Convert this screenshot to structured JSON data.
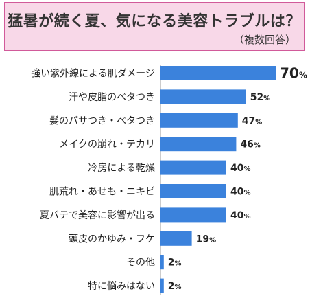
{
  "title": "猛暑が続く夏、気になる美容トラブルは？",
  "subtitle": "（複数回答）",
  "colors": {
    "bar": "#3b82dc",
    "title_bg": "#f8d8e8",
    "title_border": "#d15a9a"
  },
  "chart_data": {
    "type": "bar",
    "orientation": "horizontal",
    "title": "猛暑が続く夏、気になる美容トラブルは？",
    "subtitle": "（複数回答）",
    "unit": "%",
    "categories": [
      "強い紫外線による肌ダメージ",
      "汗や皮脂のベタつき",
      "髪のパサつき・ベタつき",
      "メイクの崩れ・テカリ",
      "冷房による乾燥",
      "肌荒れ・あせも・ニキビ",
      "夏バテで美容に影響が出る",
      "頭皮のかゆみ・フケ",
      "その他",
      "特に悩みはない"
    ],
    "values": [
      70,
      52,
      47,
      46,
      40,
      40,
      40,
      19,
      2,
      2
    ],
    "xlim": [
      0,
      100
    ],
    "grid": false,
    "legend": "none"
  }
}
